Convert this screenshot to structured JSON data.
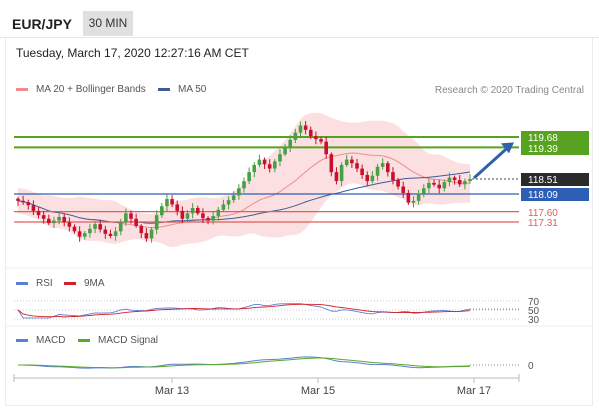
{
  "header": {
    "pair": "EUR/JPY",
    "timeframe": "30 MIN",
    "datetime": "Tuesday, March 17, 2020 12:27:16 AM CET",
    "source": "Research © 2020 Trading Central"
  },
  "legends": {
    "ma20": "MA 20 + Bollinger Bands",
    "ma50": "MA 50",
    "rsi": "RSI",
    "rsi_ma": "9MA",
    "macd": "MACD",
    "macd_signal": "MACD Signal"
  },
  "colors": {
    "bull": "#46a046",
    "bear": "#c8102e",
    "bollinger_fill": "#fbd9dc",
    "ma20": "#f28b8b",
    "ma50": "#3a5d97",
    "resistance": "#57a21f",
    "support": "#2d5fb5",
    "support_red": "#e35b5b",
    "arrow": "#2e62a8",
    "rsi": "#5b7fd6",
    "rsi_ma": "#d61f26",
    "macd": "#5b7fd6",
    "macd_signal": "#5aa82a"
  },
  "chart_data": [
    {
      "type": "candlestick",
      "pane": "price",
      "y_labels": [
        {
          "value": 119.68,
          "label": "119.68",
          "kind": "resistance"
        },
        {
          "value": 119.39,
          "label": "119.39",
          "kind": "resistance"
        },
        {
          "value": 118.51,
          "label": "118.51",
          "kind": "last"
        },
        {
          "value": 118.09,
          "label": "118.09",
          "kind": "support"
        },
        {
          "value": 117.6,
          "label": "117.60",
          "kind": "support-red"
        },
        {
          "value": 117.31,
          "label": "117.31",
          "kind": "support-red"
        }
      ],
      "x_tick_labels": [
        "Mar 13",
        "Mar 15",
        "Mar 17"
      ],
      "annotations": [
        {
          "type": "arrow",
          "from": 118.51,
          "to": 119.39
        }
      ],
      "close": [
        117.9,
        117.86,
        117.78,
        117.62,
        117.5,
        117.4,
        117.28,
        117.35,
        117.45,
        117.3,
        117.18,
        117.05,
        116.9,
        117.0,
        117.12,
        117.25,
        117.1,
        116.98,
        116.92,
        117.05,
        117.3,
        117.55,
        117.4,
        117.2,
        117.0,
        116.85,
        117.1,
        117.5,
        117.75,
        117.95,
        117.8,
        117.62,
        117.4,
        117.55,
        117.7,
        117.55,
        117.42,
        117.35,
        117.48,
        117.65,
        117.8,
        117.92,
        118.05,
        118.25,
        118.45,
        118.7,
        118.9,
        119.05,
        118.92,
        118.8,
        119.0,
        119.2,
        119.4,
        119.6,
        119.8,
        120.0,
        119.88,
        119.7,
        119.62,
        119.55,
        119.2,
        118.7,
        118.45,
        118.9,
        119.05,
        118.95,
        118.8,
        118.62,
        118.45,
        118.6,
        118.85,
        118.95,
        118.7,
        118.48,
        118.3,
        118.12,
        117.85,
        117.9,
        118.1,
        118.25,
        118.4,
        118.35,
        118.25,
        118.42,
        118.55,
        118.48,
        118.36,
        118.45,
        118.51
      ],
      "volatility": 0.14
    },
    {
      "type": "line",
      "pane": "RSI",
      "tick_labels": [
        "70",
        "50",
        "30"
      ],
      "ylim": [
        30,
        70
      ],
      "series": [
        {
          "name": "RSI"
        },
        {
          "name": "9MA"
        }
      ]
    },
    {
      "type": "line",
      "pane": "MACD",
      "tick_labels": [
        "0"
      ],
      "series": [
        {
          "name": "MACD"
        },
        {
          "name": "MACD Signal"
        }
      ]
    }
  ]
}
